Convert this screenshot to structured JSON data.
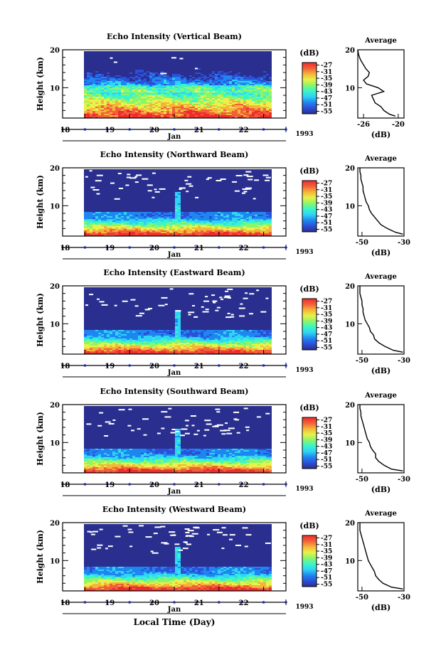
{
  "figure": {
    "bottom_xlabel": "Local Time (Day)",
    "colors": {
      "colormap": [
        "#2a2f8f",
        "#2c4fd8",
        "#1e86f0",
        "#2fd3f5",
        "#3bf5c9",
        "#8cf56a",
        "#e8f24a",
        "#f5b43a",
        "#f2603a",
        "#ef2b2b"
      ],
      "missing": "#ffffff",
      "axis": "#000000",
      "tick_marker": "#1a2aa8"
    }
  },
  "chart_data": [
    {
      "type": "heatmap",
      "title": "Echo Intensity (Vertical Beam)",
      "ylabel": "Height (km)",
      "ylim": [
        2,
        20
      ],
      "yticks": [
        "20",
        "10"
      ],
      "ytick_values": [
        20,
        10
      ],
      "xlim": [
        17.5,
        22.5
      ],
      "xticks": [
        "18",
        "19",
        "20",
        "21",
        "22"
      ],
      "xtick_values": [
        18,
        19,
        20,
        21,
        22
      ],
      "month": "Jan",
      "year": "1993",
      "colorbar": {
        "unit": "(dB)",
        "labels": [
          "-27",
          "-31",
          "-35",
          "-39",
          "-43",
          "-47",
          "-51",
          "-55"
        ],
        "values": [
          -27,
          -31,
          -35,
          -39,
          -43,
          -47,
          -51,
          -55
        ]
      },
      "profile": {
        "title": "Average",
        "xlabel": "(dB)",
        "xticks": [
          "-26",
          "-20"
        ],
        "xtick_values": [
          -26,
          -20
        ],
        "xlim": [
          -27,
          -19
        ],
        "ylim": [
          2,
          20
        ],
        "yticks": [
          "20",
          "10"
        ],
        "ytick_values": [
          20,
          10
        ],
        "height": [
          2.5,
          3,
          4,
          5,
          6,
          7,
          8,
          9,
          10,
          11,
          12,
          13,
          14,
          15,
          16,
          17,
          18,
          19,
          20
        ],
        "values": [
          -20.5,
          -21.5,
          -22.5,
          -23.0,
          -24.0,
          -24.3,
          -24.6,
          -22.5,
          -23.5,
          -25.5,
          -26.0,
          -25.2,
          -25.0,
          -25.6,
          -26.0,
          -26.4,
          -26.7,
          -26.9,
          -27.0
        ]
      }
    },
    {
      "type": "heatmap",
      "title": "Echo Intensity (Northward Beam)",
      "ylabel": "Height (km)",
      "ylim": [
        2,
        20
      ],
      "yticks": [
        "20",
        "10"
      ],
      "ytick_values": [
        20,
        10
      ],
      "xlim": [
        17.5,
        22.5
      ],
      "xticks": [
        "18",
        "19",
        "20",
        "21",
        "22"
      ],
      "xtick_values": [
        18,
        19,
        20,
        21,
        22
      ],
      "month": "Jan",
      "year": "1993",
      "colorbar": {
        "unit": "(dB)",
        "labels": [
          "-27",
          "-31",
          "-35",
          "-39",
          "-43",
          "-47",
          "-51",
          "-55"
        ],
        "values": [
          -27,
          -31,
          -35,
          -39,
          -43,
          -47,
          -51,
          -55
        ]
      },
      "profile": {
        "title": "Average",
        "xlabel": "(dB)",
        "xticks": [
          "-50",
          "-30"
        ],
        "xtick_values": [
          -50,
          -30
        ],
        "xlim": [
          -52,
          -30
        ],
        "ylim": [
          2,
          20
        ],
        "yticks": [
          "20",
          "10"
        ],
        "ytick_values": [
          20,
          10
        ],
        "height": [
          2.5,
          3,
          4,
          5,
          6,
          7,
          8,
          9,
          10,
          11,
          12,
          13,
          14,
          15,
          16,
          17,
          18,
          19,
          20
        ],
        "values": [
          -30.5,
          -34,
          -38,
          -41,
          -42.5,
          -44,
          -45.5,
          -46.5,
          -47,
          -48,
          -48.5,
          -49,
          -49.5,
          -49.5,
          -50,
          -50.5,
          -50.5,
          -51,
          -51
        ]
      }
    },
    {
      "type": "heatmap",
      "title": "Echo Intensity (Eastward Beam)",
      "ylabel": "Height (km)",
      "ylim": [
        2,
        20
      ],
      "yticks": [
        "20",
        "10"
      ],
      "ytick_values": [
        20,
        10
      ],
      "xlim": [
        17.5,
        22.5
      ],
      "xticks": [
        "18",
        "19",
        "20",
        "21",
        "22"
      ],
      "xtick_values": [
        18,
        19,
        20,
        21,
        22
      ],
      "month": "Jan",
      "year": "1993",
      "colorbar": {
        "unit": "(dB)",
        "labels": [
          "-27",
          "-31",
          "-35",
          "-39",
          "-43",
          "-47",
          "-51",
          "-55"
        ],
        "values": [
          -27,
          -31,
          -35,
          -39,
          -43,
          -47,
          -51,
          -55
        ]
      },
      "profile": {
        "title": "Average",
        "xlabel": "(dB)",
        "xticks": [
          "-50",
          "-30"
        ],
        "xtick_values": [
          -50,
          -30
        ],
        "xlim": [
          -52,
          -30
        ],
        "ylim": [
          2,
          20
        ],
        "yticks": [
          "20",
          "10"
        ],
        "ytick_values": [
          20,
          10
        ],
        "height": [
          2.5,
          3,
          4,
          5,
          6,
          7,
          8,
          9,
          10,
          11,
          12,
          13,
          14,
          15,
          16,
          17,
          18,
          19,
          20
        ],
        "values": [
          -30.5,
          -35,
          -39,
          -42,
          -44,
          -44.5,
          -46,
          -46.5,
          -47.5,
          -48.5,
          -49,
          -49.5,
          -49.5,
          -50,
          -50,
          -50.5,
          -51,
          -51,
          -51
        ]
      }
    },
    {
      "type": "heatmap",
      "title": "Echo Intensity (Southward Beam)",
      "ylabel": "Height (km)",
      "ylim": [
        2,
        20
      ],
      "yticks": [
        "20",
        "10"
      ],
      "ytick_values": [
        20,
        10
      ],
      "xlim": [
        17.5,
        22.5
      ],
      "xticks": [
        "18",
        "19",
        "20",
        "21",
        "22"
      ],
      "xtick_values": [
        18,
        19,
        20,
        21,
        22
      ],
      "month": "Jan",
      "year": "1993",
      "colorbar": {
        "unit": "(dB)",
        "labels": [
          "-27",
          "-31",
          "-35",
          "-39",
          "-43",
          "-47",
          "-51",
          "-55"
        ],
        "values": [
          -27,
          -31,
          -35,
          -39,
          -43,
          -47,
          -51,
          -55
        ]
      },
      "profile": {
        "title": "Average",
        "xlabel": "(dB)",
        "xticks": [
          "-50",
          "-30"
        ],
        "xtick_values": [
          -50,
          -30
        ],
        "xlim": [
          -52,
          -30
        ],
        "ylim": [
          2,
          20
        ],
        "yticks": [
          "20",
          "10"
        ],
        "ytick_values": [
          20,
          10
        ],
        "height": [
          2.5,
          3,
          4,
          5,
          6,
          7,
          8,
          9,
          10,
          11,
          12,
          13,
          14,
          15,
          16,
          17,
          18,
          19,
          20
        ],
        "values": [
          -30.5,
          -36,
          -39.5,
          -42,
          -43.5,
          -43.5,
          -45,
          -46,
          -46.5,
          -47.5,
          -48,
          -48.5,
          -49,
          -49.5,
          -50,
          -50.5,
          -50.5,
          -51,
          -51
        ]
      }
    },
    {
      "type": "heatmap",
      "title": "Echo Intensity (Westward Beam)",
      "ylabel": "Height (km)",
      "ylim": [
        2,
        20
      ],
      "yticks": [
        "20",
        "10"
      ],
      "ytick_values": [
        20,
        10
      ],
      "xlim": [
        17.5,
        22.5
      ],
      "xticks": [
        "18",
        "19",
        "20",
        "21",
        "22"
      ],
      "xtick_values": [
        18,
        19,
        20,
        21,
        22
      ],
      "month": "Jan",
      "year": "1993",
      "colorbar": {
        "unit": "(dB)",
        "labels": [
          "-27",
          "-31",
          "-35",
          "-39",
          "-43",
          "-47",
          "-51",
          "-55"
        ],
        "values": [
          -27,
          -31,
          -35,
          -39,
          -43,
          -47,
          -51,
          -55
        ]
      },
      "profile": {
        "title": "Average",
        "xlabel": "(dB)",
        "xticks": [
          "-50",
          "-30"
        ],
        "xtick_values": [
          -50,
          -30
        ],
        "xlim": [
          -52,
          -30
        ],
        "ylim": [
          2,
          20
        ],
        "yticks": [
          "20",
          "10"
        ],
        "ytick_values": [
          20,
          10
        ],
        "height": [
          2.5,
          3,
          4,
          5,
          6,
          7,
          8,
          9,
          10,
          11,
          12,
          13,
          14,
          15,
          16,
          17,
          18,
          19,
          20
        ],
        "values": [
          -30.5,
          -36,
          -40,
          -42,
          -43.5,
          -44,
          -45,
          -46,
          -47,
          -47.5,
          -48,
          -48.5,
          -49,
          -49.5,
          -50,
          -50.5,
          -51,
          -51,
          -51
        ]
      }
    }
  ]
}
